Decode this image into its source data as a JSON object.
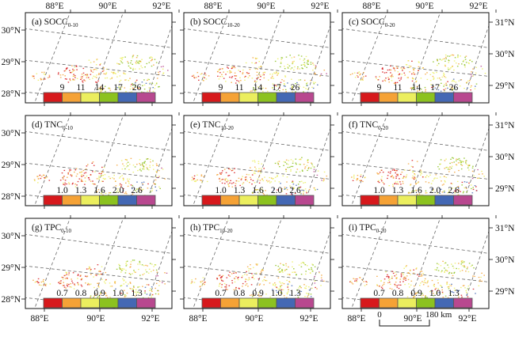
{
  "figure": {
    "columns": [
      "0-10 cm",
      "10-20 cm",
      "0-20 cm"
    ],
    "lon_ticks": [
      "88°E",
      "90°E",
      "92°E"
    ],
    "lat_ticks_left": [
      "30°N",
      "29°N",
      "28°N"
    ],
    "lat_ticks_right": [
      "31°N",
      "30°N",
      "29°N"
    ],
    "legend_colors": [
      "#d7191c",
      "#f5a236",
      "#ebee5e",
      "#8cc21f",
      "#4468b4",
      "#b8488f"
    ],
    "rows": [
      {
        "variable": "SOCC",
        "legend_breaks": [
          "9",
          "11",
          "14",
          "17",
          "26"
        ],
        "panels": [
          {
            "letter": "(a)",
            "name": "SOCC",
            "sub": "0-10"
          },
          {
            "letter": "(b)",
            "name": "SOCC",
            "sub": "10-20"
          },
          {
            "letter": "(c)",
            "name": "SOCC",
            "sub": "0-20"
          }
        ]
      },
      {
        "variable": "TNC",
        "legend_breaks": [
          "1.0",
          "1.3",
          "1.6",
          "2.0",
          "2.6"
        ],
        "panels": [
          {
            "letter": "(d)",
            "name": "TNC",
            "sub": "0-10"
          },
          {
            "letter": "(e)",
            "name": "TNC",
            "sub": "10-20"
          },
          {
            "letter": "(f)",
            "name": "TNC",
            "sub": "0-20"
          }
        ]
      },
      {
        "variable": "TPC",
        "legend_breaks": [
          "0.7",
          "0.8",
          "0.9",
          "1.0",
          "1.3"
        ],
        "panels": [
          {
            "letter": "(g)",
            "name": "TPC",
            "sub": "0-10"
          },
          {
            "letter": "(h)",
            "name": "TPC",
            "sub": "10-20"
          },
          {
            "letter": "(i)",
            "name": "TPC",
            "sub": "0-20"
          }
        ]
      }
    ],
    "scale_bar": {
      "start": "0",
      "end": "180 km"
    }
  }
}
